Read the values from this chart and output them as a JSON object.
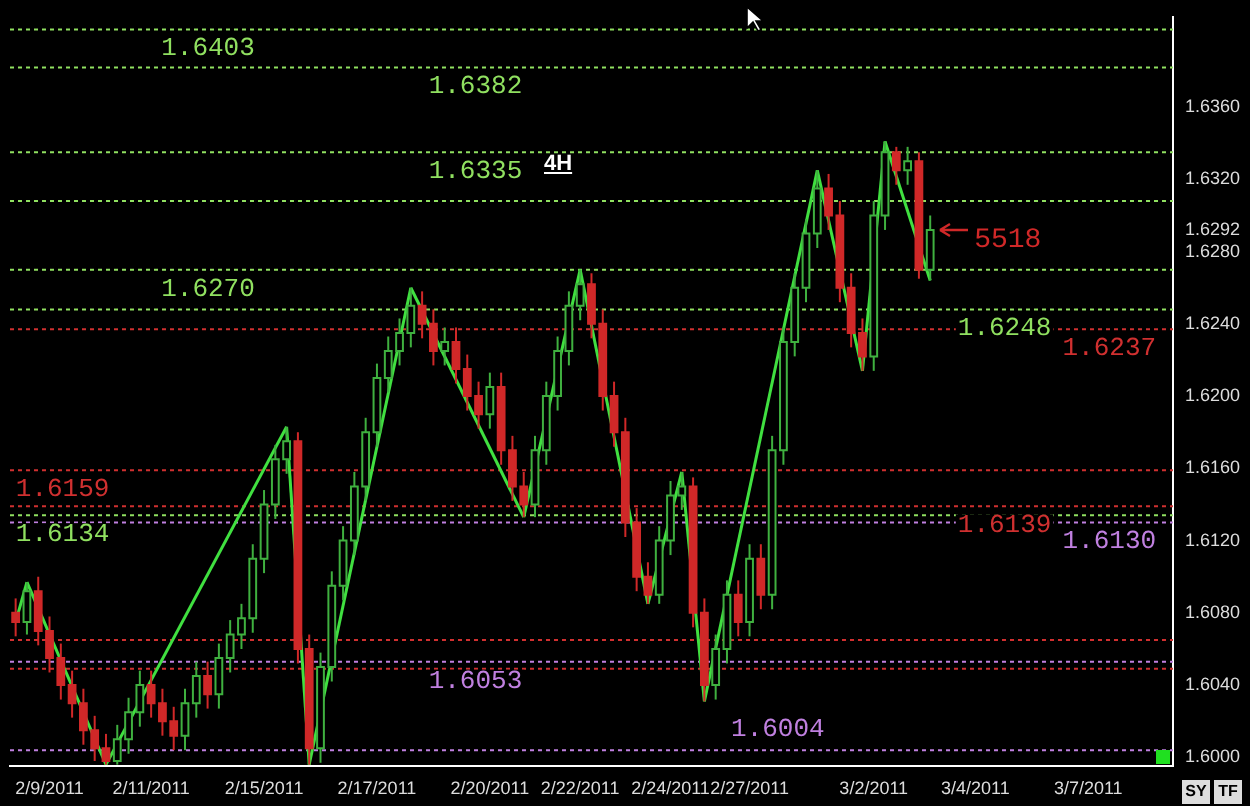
{
  "chart_data": {
    "type": "candlestick",
    "title": "4H",
    "categories": [
      null,
      null,
      null,
      "2/9/2011",
      null,
      null,
      null,
      null,
      null,
      null,
      null,
      null,
      "2/11/2011",
      null,
      null,
      null,
      null,
      null,
      null,
      null,
      null,
      null,
      "2/15/2011",
      null,
      null,
      null,
      null,
      null,
      null,
      null,
      null,
      null,
      "2/17/2011",
      null,
      null,
      null,
      null,
      null,
      null,
      null,
      null,
      null,
      "2/20/2011",
      null,
      null,
      null,
      null,
      null,
      null,
      null,
      "2/22/2011",
      null,
      null,
      null,
      null,
      null,
      null,
      null,
      "2/24/2011",
      null,
      null,
      null,
      null,
      null,
      null,
      "2/27/2011",
      null,
      null,
      null,
      null,
      null,
      null,
      null,
      null,
      null,
      null,
      "3/2/2011",
      null,
      null,
      null,
      null,
      null,
      null,
      null,
      null,
      "3/4/2011",
      null,
      null,
      null,
      null,
      null,
      null,
      null,
      null,
      null,
      "3/7/2011",
      null,
      null,
      null,
      null,
      null,
      null,
      null
    ],
    "ohlc": [
      [
        1.608,
        1.6088,
        1.6067,
        1.6075
      ],
      [
        1.6075,
        1.6097,
        1.6068,
        1.6092
      ],
      [
        1.6092,
        1.61,
        1.6062,
        1.607
      ],
      [
        1.607,
        1.6078,
        1.6047,
        1.6055
      ],
      [
        1.6055,
        1.6063,
        1.6032,
        1.604
      ],
      [
        1.604,
        1.6048,
        1.6022,
        1.603
      ],
      [
        1.603,
        1.6038,
        1.6007,
        1.6015
      ],
      [
        1.6015,
        1.6023,
        1.5998,
        1.6005
      ],
      [
        1.6005,
        1.6013,
        1.5996,
        1.5998
      ],
      [
        1.5998,
        1.6018,
        1.5996,
        1.601
      ],
      [
        1.601,
        1.6033,
        1.6002,
        1.6025
      ],
      [
        1.6025,
        1.6048,
        1.6017,
        1.604
      ],
      [
        1.604,
        1.6048,
        1.6022,
        1.603
      ],
      [
        1.603,
        1.6038,
        1.6012,
        1.602
      ],
      [
        1.602,
        1.6028,
        1.6004,
        1.6012
      ],
      [
        1.6012,
        1.6038,
        1.6004,
        1.603
      ],
      [
        1.603,
        1.6053,
        1.6022,
        1.6045
      ],
      [
        1.6045,
        1.6053,
        1.6027,
        1.6035
      ],
      [
        1.6035,
        1.6063,
        1.6027,
        1.6055
      ],
      [
        1.6055,
        1.6076,
        1.6047,
        1.6068
      ],
      [
        1.6068,
        1.6085,
        1.606,
        1.6077
      ],
      [
        1.6077,
        1.6118,
        1.6069,
        1.611
      ],
      [
        1.611,
        1.6148,
        1.6102,
        1.614
      ],
      [
        1.614,
        1.6173,
        1.6132,
        1.6165
      ],
      [
        1.6165,
        1.6183,
        1.6157,
        1.6175
      ],
      [
        1.6175,
        1.618,
        1.6052,
        1.606
      ],
      [
        1.606,
        1.6068,
        1.5996,
        1.6005
      ],
      [
        1.6005,
        1.6058,
        1.5997,
        1.605
      ],
      [
        1.605,
        1.6103,
        1.6042,
        1.6095
      ],
      [
        1.6095,
        1.6128,
        1.6087,
        1.612
      ],
      [
        1.612,
        1.6158,
        1.6112,
        1.615
      ],
      [
        1.615,
        1.6188,
        1.6142,
        1.618
      ],
      [
        1.618,
        1.6218,
        1.6172,
        1.621
      ],
      [
        1.621,
        1.6233,
        1.6202,
        1.6225
      ],
      [
        1.6225,
        1.6243,
        1.6217,
        1.6235
      ],
      [
        1.6235,
        1.626,
        1.6227,
        1.625
      ],
      [
        1.625,
        1.6258,
        1.6232,
        1.624
      ],
      [
        1.624,
        1.6248,
        1.6217,
        1.6225
      ],
      [
        1.6225,
        1.6238,
        1.6217,
        1.623
      ],
      [
        1.623,
        1.6238,
        1.6207,
        1.6215
      ],
      [
        1.6215,
        1.6223,
        1.6192,
        1.62
      ],
      [
        1.62,
        1.6208,
        1.6182,
        1.619
      ],
      [
        1.619,
        1.6213,
        1.6182,
        1.6205
      ],
      [
        1.6205,
        1.6213,
        1.6162,
        1.617
      ],
      [
        1.617,
        1.6178,
        1.6142,
        1.615
      ],
      [
        1.615,
        1.6158,
        1.6133,
        1.614
      ],
      [
        1.614,
        1.6178,
        1.6133,
        1.617
      ],
      [
        1.617,
        1.6208,
        1.6162,
        1.62
      ],
      [
        1.62,
        1.6233,
        1.6192,
        1.6225
      ],
      [
        1.6225,
        1.6258,
        1.6217,
        1.625
      ],
      [
        1.625,
        1.627,
        1.6242,
        1.6262
      ],
      [
        1.6262,
        1.6268,
        1.6232,
        1.624
      ],
      [
        1.624,
        1.6248,
        1.6192,
        1.62
      ],
      [
        1.62,
        1.6208,
        1.6172,
        1.618
      ],
      [
        1.618,
        1.6188,
        1.6122,
        1.613
      ],
      [
        1.613,
        1.6138,
        1.6092,
        1.61
      ],
      [
        1.61,
        1.6108,
        1.6085,
        1.609
      ],
      [
        1.609,
        1.6128,
        1.6085,
        1.612
      ],
      [
        1.612,
        1.6153,
        1.6112,
        1.6145
      ],
      [
        1.6145,
        1.6158,
        1.6137,
        1.615
      ],
      [
        1.615,
        1.6155,
        1.6072,
        1.608
      ],
      [
        1.608,
        1.6088,
        1.6031,
        1.604
      ],
      [
        1.604,
        1.6068,
        1.6032,
        1.606
      ],
      [
        1.606,
        1.6098,
        1.6052,
        1.609
      ],
      [
        1.609,
        1.6098,
        1.6067,
        1.6075
      ],
      [
        1.6075,
        1.6118,
        1.6067,
        1.611
      ],
      [
        1.611,
        1.6118,
        1.6082,
        1.609
      ],
      [
        1.609,
        1.6178,
        1.6082,
        1.617
      ],
      [
        1.617,
        1.6238,
        1.6162,
        1.623
      ],
      [
        1.623,
        1.6268,
        1.6222,
        1.626
      ],
      [
        1.626,
        1.6298,
        1.6252,
        1.629
      ],
      [
        1.629,
        1.6325,
        1.6282,
        1.6315
      ],
      [
        1.6315,
        1.6323,
        1.6292,
        1.63
      ],
      [
        1.63,
        1.6308,
        1.6252,
        1.626
      ],
      [
        1.626,
        1.6268,
        1.6227,
        1.6235
      ],
      [
        1.6235,
        1.6243,
        1.6214,
        1.6222
      ],
      [
        1.6222,
        1.6308,
        1.6214,
        1.63
      ],
      [
        1.63,
        1.6341,
        1.6292,
        1.6335
      ],
      [
        1.6335,
        1.6338,
        1.6317,
        1.6325
      ],
      [
        1.6325,
        1.6338,
        1.6317,
        1.633
      ],
      [
        1.633,
        1.6335,
        1.6265,
        1.627
      ],
      [
        1.627,
        1.63,
        1.6264,
        1.6292
      ],
      null,
      null,
      null,
      null,
      null,
      null,
      null,
      null,
      null,
      null,
      null,
      null,
      null,
      null,
      null,
      null,
      null,
      null,
      null,
      null,
      null
    ],
    "series": [
      {
        "type": "line",
        "color": "#40e040",
        "values": [
          1.6075,
          1.6097,
          null,
          null,
          null,
          null,
          null,
          null,
          1.5996,
          null,
          null,
          null,
          null,
          null,
          null,
          null,
          null,
          null,
          null,
          null,
          null,
          null,
          null,
          null,
          1.6183,
          null,
          1.5996,
          null,
          null,
          null,
          null,
          null,
          null,
          null,
          null,
          1.626,
          null,
          null,
          null,
          null,
          null,
          null,
          null,
          null,
          null,
          1.6133,
          null,
          null,
          null,
          null,
          1.627,
          null,
          null,
          null,
          null,
          null,
          1.6085,
          null,
          null,
          1.6158,
          null,
          1.6031,
          null,
          null,
          null,
          null,
          null,
          null,
          null,
          null,
          null,
          1.6325,
          null,
          null,
          null,
          1.6214,
          null,
          1.6341,
          null,
          null,
          null,
          1.6264,
          null,
          null,
          null,
          null,
          null,
          null,
          null,
          null,
          null,
          null,
          null,
          null,
          null,
          null,
          null,
          null,
          null,
          null,
          null,
          null,
          null
        ]
      }
    ],
    "ylim": [
      1.5995,
      1.641
    ],
    "yticks": [
      {
        "value": 1.6,
        "label": "1.6000"
      },
      {
        "value": 1.604,
        "label": "1.6040"
      },
      {
        "value": 1.608,
        "label": "1.6080"
      },
      {
        "value": 1.612,
        "label": "1.6120"
      },
      {
        "value": 1.616,
        "label": "1.6160"
      },
      {
        "value": 1.62,
        "label": "1.6200"
      },
      {
        "value": 1.624,
        "label": "1.6240"
      },
      {
        "value": 1.628,
        "label": "1.6280"
      },
      {
        "value": 1.6292,
        "label": "1.6292"
      },
      {
        "value": 1.632,
        "label": "1.6320"
      },
      {
        "value": 1.636,
        "label": "1.6360"
      }
    ],
    "ref_lines": [
      {
        "axis": "y",
        "value": 1.6403,
        "label": "1.6403",
        "color": "#90e060",
        "line_style": "dotted"
      },
      {
        "axis": "y",
        "value": 1.6382,
        "label": "1.6382",
        "color": "#90e060",
        "line_style": "dotted"
      },
      {
        "axis": "y",
        "value": 1.6335,
        "label": "1.6335",
        "color": "#90e060",
        "line_style": "dotted"
      },
      {
        "axis": "y",
        "value": 1.6308,
        "color": "#90e060",
        "line_style": "dotted"
      },
      {
        "axis": "y",
        "value": 1.627,
        "label": "1.6270",
        "color": "#90e060",
        "line_style": "dotted"
      },
      {
        "axis": "y",
        "value": 1.6248,
        "label": "1.6248",
        "color": "#90e060",
        "line_style": "dotted"
      },
      {
        "axis": "y",
        "value": 1.6237,
        "label": "1.6237",
        "color": "#d03030",
        "line_style": "dotted"
      },
      {
        "axis": "y",
        "value": 1.6159,
        "label": "1.6159",
        "color": "#d03030",
        "line_style": "dotted"
      },
      {
        "axis": "y",
        "value": 1.6139,
        "label": "1.6139",
        "color": "#d03030",
        "line_style": "dotted"
      },
      {
        "axis": "y",
        "value": 1.6134,
        "label": "1.6134",
        "color": "#90e060",
        "line_style": "dotted"
      },
      {
        "axis": "y",
        "value": 1.613,
        "label": "1.6130",
        "color": "#c080e0",
        "line_style": "dotted"
      },
      {
        "axis": "y",
        "value": 1.6065,
        "color": "#d03030",
        "line_style": "dotted"
      },
      {
        "axis": "y",
        "value": 1.6053,
        "label": "1.6053",
        "color": "#c080e0",
        "line_style": "dotted"
      },
      {
        "axis": "y",
        "value": 1.6049,
        "color": "#d03030",
        "line_style": "dotted"
      },
      {
        "axis": "y",
        "value": 1.6004,
        "label": "1.6004",
        "color": "#c080e0",
        "line_style": "dotted"
      }
    ],
    "annotations": [
      "5518",
      "SY",
      "TF"
    ]
  }
}
